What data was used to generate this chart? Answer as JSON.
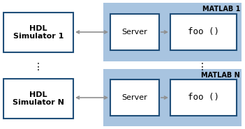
{
  "bg_color": "#ffffff",
  "matlab_bg": "#a8c4e0",
  "box_facecolor": "#ffffff",
  "box_edgecolor": "#1f4e79",
  "arrow_color": "#909090",
  "fig_width": 3.51,
  "fig_height": 1.85,
  "matlab1_label": "MATLAB 1",
  "matlabN_label": "MATLAB N",
  "hdl1_label": "HDL\nSimulator 1",
  "hdlN_label": "HDL\nSimulator N",
  "server_label": "Server",
  "foo_label": "foo ()",
  "dots": "⋮"
}
